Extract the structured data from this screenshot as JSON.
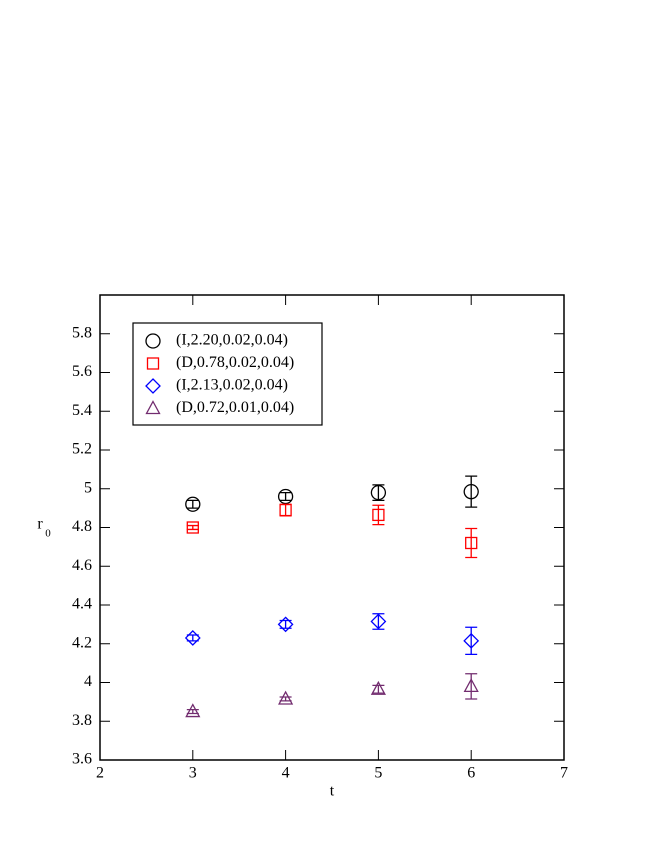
{
  "chart_data": {
    "type": "scatter",
    "xlabel": "t",
    "ylabel": "r",
    "ylabel_subscript": "0",
    "x": [
      3,
      4,
      5,
      6
    ],
    "series": [
      {
        "name": "(I,2.20,0.02,0.04)",
        "color": "#000000",
        "marker": "circle",
        "values": [
          4.92,
          4.96,
          4.98,
          4.985
        ],
        "errors": [
          0.02,
          0.02,
          0.04,
          0.08
        ]
      },
      {
        "name": "(D,0.78,0.02,0.04)",
        "color": "#ff0000",
        "marker": "square",
        "values": [
          4.8,
          4.89,
          4.865,
          4.72
        ],
        "errors": [
          0.01,
          0.03,
          0.05,
          0.075
        ]
      },
      {
        "name": "(I,2.13,0.02,0.04)",
        "color": "#0000ff",
        "marker": "diamond",
        "values": [
          4.23,
          4.3,
          4.315,
          4.215
        ],
        "errors": [
          0.015,
          0.02,
          0.04,
          0.07
        ]
      },
      {
        "name": "(D,0.72,0.01,0.04)",
        "color": "#722c6f",
        "marker": "triangle",
        "values": [
          3.85,
          3.915,
          3.965,
          3.98
        ],
        "errors": [
          0.01,
          0.01,
          0.02,
          0.065
        ]
      }
    ],
    "xlim": [
      2,
      7
    ],
    "xticks": [
      2,
      3,
      4,
      5,
      6,
      7
    ],
    "ylim": [
      3.6,
      6.0
    ],
    "yticks": [
      3.6,
      3.8,
      4,
      4.2,
      4.4,
      4.6,
      4.8,
      5,
      5.2,
      5.4,
      5.6,
      5.8
    ]
  }
}
